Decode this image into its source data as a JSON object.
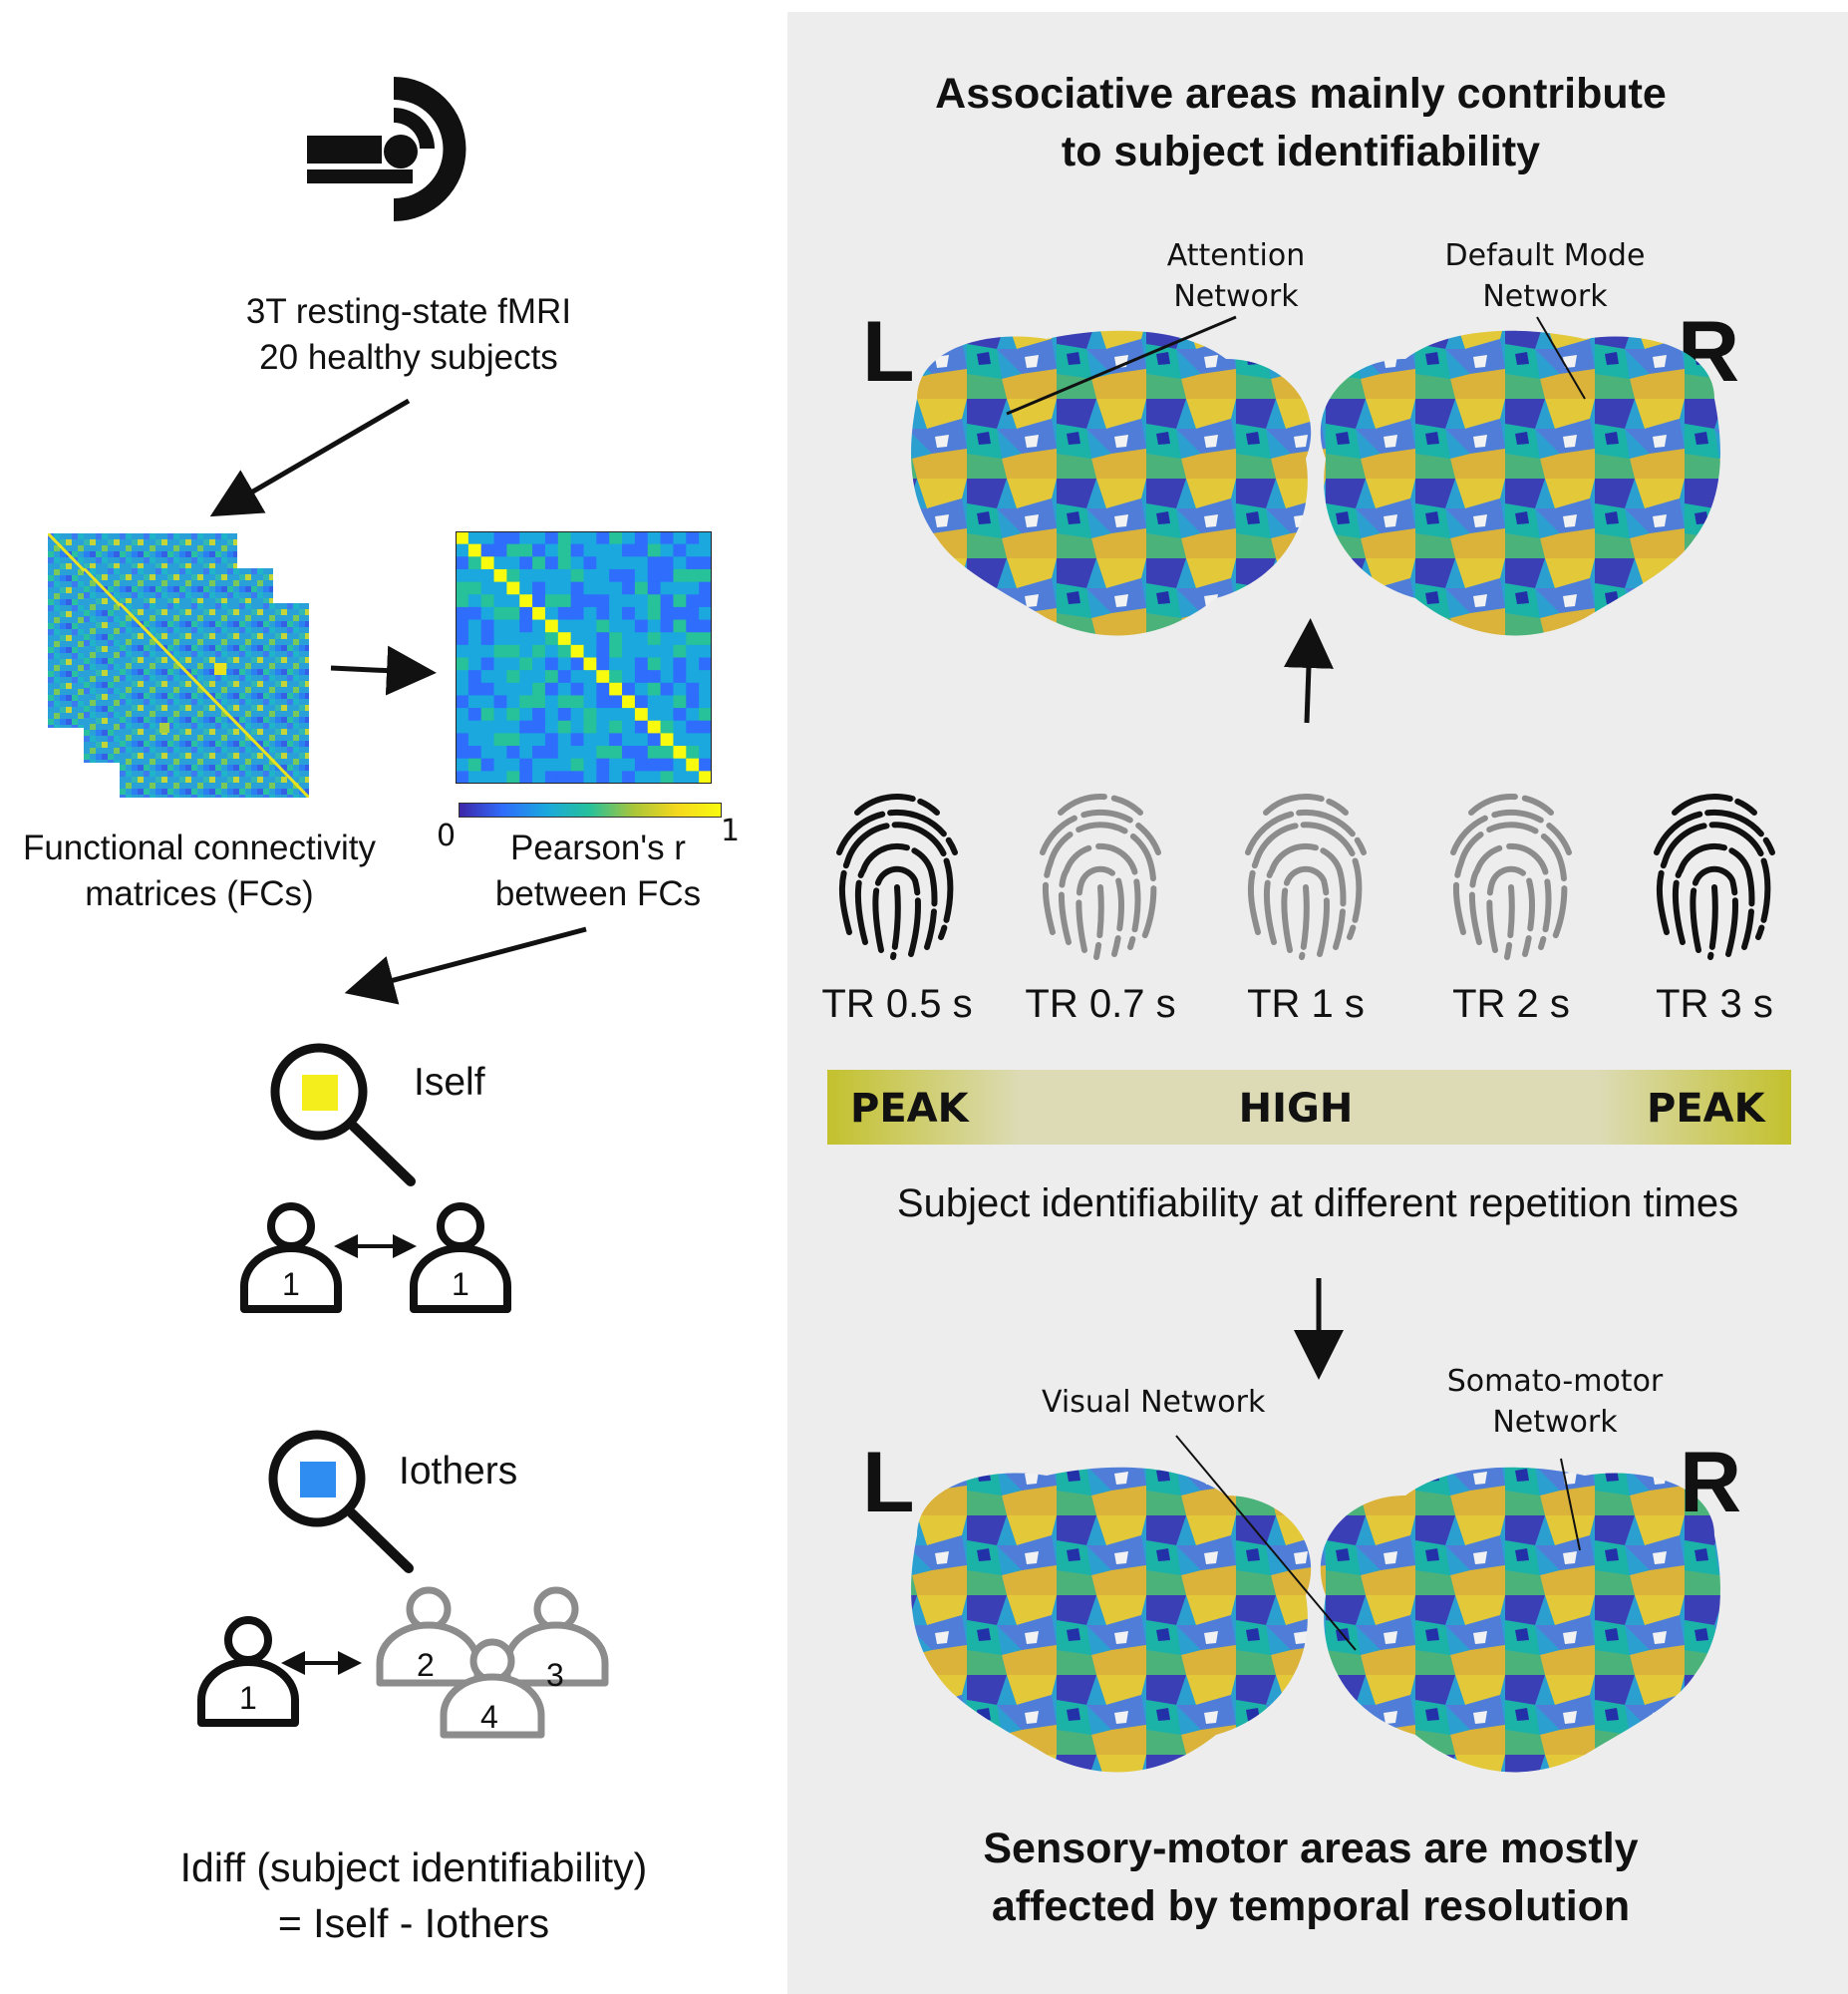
{
  "left_panel": {
    "mri": {
      "icon": "mri-scanner-icon",
      "caption_line1": "3T resting-state fMRI",
      "caption_line2": "20 healthy subjects"
    },
    "fc": {
      "caption_line1": "Functional connectivity",
      "caption_line2": "matrices (FCs)"
    },
    "pearson": {
      "caption_line1": "Pearson's r",
      "caption_line2": "between FCs",
      "colorbar_min": "0",
      "colorbar_max": "1",
      "colormap": [
        "#3e26a8",
        "#2f6dfc",
        "#1aa8de",
        "#27c19a",
        "#a9c53a",
        "#f4d81d",
        "#f9fb0e"
      ]
    },
    "iself": {
      "label": "Iself",
      "square_color": "#f4ee1c",
      "subject_a": "1",
      "subject_b": "1"
    },
    "iothers": {
      "label": "Iothers",
      "square_color": "#2f8cf0",
      "subject_main": "1",
      "others": [
        "2",
        "3",
        "4"
      ]
    },
    "idiff": {
      "line1": "Idiff (subject identifiability)",
      "line2": "= Iself - Iothers"
    }
  },
  "right_panel": {
    "top_heading_line1": "Associative areas mainly contribute",
    "top_heading_line2": "to subject identifiability",
    "top_brains": {
      "left_letter": "L",
      "right_letter": "R",
      "attention_line1": "Attention",
      "attention_line2": "Network",
      "dmn_line1": "Default Mode",
      "dmn_line2": "Network"
    },
    "fingerprints": [
      {
        "label": "TR 0.5 s",
        "color": "#111111"
      },
      {
        "label": "TR 0.7 s",
        "color": "#8c8c8c"
      },
      {
        "label": "TR 1 s",
        "color": "#8c8c8c"
      },
      {
        "label": "TR 2 s",
        "color": "#8c8c8c"
      },
      {
        "label": "TR 3 s",
        "color": "#111111"
      }
    ],
    "bar": {
      "left": "PEAK",
      "middle": "HIGH",
      "right": "PEAK",
      "peak_color": "#c3c12d",
      "mid_color": "#dcdbb5"
    },
    "bar_caption": "Subject identifiability at different repetition times",
    "bottom_brains": {
      "left_letter": "L",
      "right_letter": "R",
      "visual_label": "Visual Network",
      "somato_line1": "Somato-motor",
      "somato_line2": "Network"
    },
    "bottom_heading_line1": "Sensory-motor areas are mostly",
    "bottom_heading_line2": "affected by temporal resolution"
  }
}
